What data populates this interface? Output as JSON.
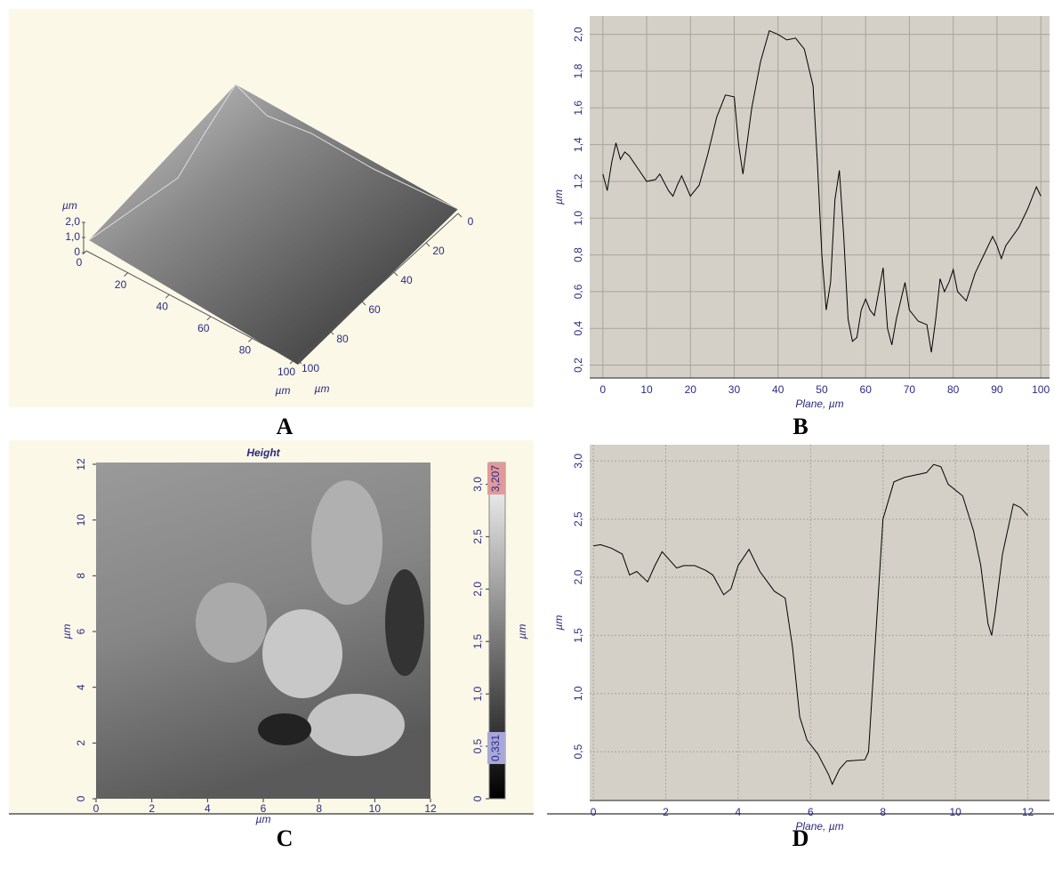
{
  "chart_data": [
    {
      "type": "surface3d",
      "panel_label": "A",
      "xlabel": "µm",
      "ylabel": "µm",
      "zlabel": "µm",
      "xlim": [
        0,
        100
      ],
      "ylim": [
        0,
        100
      ],
      "zlim": [
        0,
        2
      ],
      "xticks": [
        0,
        20,
        40,
        60,
        80,
        100
      ],
      "yticks": [
        0,
        20,
        40,
        60,
        80,
        100
      ],
      "zticks": [
        0,
        {
          "value": 1,
          "label": "1,0"
        },
        {
          "value": 2,
          "label": "2,0"
        }
      ]
    },
    {
      "type": "line",
      "panel_label": "B",
      "xlabel": "Plane, µm",
      "ylabel": "µm",
      "grid": "solid",
      "color": "#000000",
      "xlim": [
        -3,
        102
      ],
      "ylim": [
        0.13,
        2.1
      ],
      "xticks": [
        0,
        10,
        20,
        30,
        40,
        50,
        60,
        70,
        80,
        90,
        100
      ],
      "yticks": [
        {
          "value": 0.2,
          "label": "0,2"
        },
        {
          "value": 0.4,
          "label": "0,4"
        },
        {
          "value": 0.6,
          "label": "0,6"
        },
        {
          "value": 0.8,
          "label": "0,8"
        },
        {
          "value": 1,
          "label": "1,0"
        },
        {
          "value": 1.2,
          "label": "1,2"
        },
        {
          "value": 1.4,
          "label": "1,4"
        },
        {
          "value": 1.6,
          "label": "1,6"
        },
        {
          "value": 1.8,
          "label": "1,8"
        },
        {
          "value": 2,
          "label": "2,0"
        }
      ],
      "x": [
        0,
        1,
        2,
        3,
        4,
        5,
        6,
        8,
        10,
        12,
        13,
        15,
        16,
        17,
        18,
        20,
        22,
        24,
        26,
        28,
        30,
        31,
        32,
        34,
        36,
        38,
        40,
        42,
        44,
        46,
        48,
        49,
        50,
        51,
        52,
        53,
        54,
        55,
        56,
        57,
        58,
        59,
        60,
        61,
        62,
        63,
        64,
        65,
        66,
        67,
        68,
        69,
        70,
        72,
        74,
        75,
        76,
        77,
        78,
        79,
        80,
        81,
        83,
        85,
        87,
        89,
        90,
        91,
        92,
        95,
        97,
        99,
        100
      ],
      "values": [
        1.24,
        1.15,
        1.3,
        1.41,
        1.32,
        1.36,
        1.34,
        1.27,
        1.2,
        1.21,
        1.24,
        1.15,
        1.12,
        1.18,
        1.23,
        1.12,
        1.18,
        1.35,
        1.55,
        1.67,
        1.66,
        1.4,
        1.24,
        1.6,
        1.85,
        2.02,
        2.0,
        1.97,
        1.98,
        1.92,
        1.72,
        1.3,
        0.8,
        0.5,
        0.65,
        1.1,
        1.26,
        0.9,
        0.45,
        0.33,
        0.35,
        0.5,
        0.56,
        0.5,
        0.47,
        0.6,
        0.73,
        0.4,
        0.31,
        0.45,
        0.55,
        0.65,
        0.5,
        0.44,
        0.42,
        0.27,
        0.45,
        0.67,
        0.6,
        0.65,
        0.72,
        0.6,
        0.55,
        0.7,
        0.8,
        0.9,
        0.85,
        0.78,
        0.85,
        0.95,
        1.05,
        1.17,
        1.12
      ]
    },
    {
      "type": "heatmap",
      "panel_label": "C",
      "title": "Height",
      "xlabel": "µm",
      "ylabel": "µm",
      "colorbar_label": "µm",
      "xlim": [
        0,
        12
      ],
      "ylim": [
        0,
        12
      ],
      "xticks": [
        0,
        2,
        4,
        6,
        8,
        10,
        12
      ],
      "yticks": [
        0,
        2,
        4,
        6,
        8,
        10,
        12
      ],
      "colorbar_range": [
        {
          "value": 0.331,
          "label": "0,331"
        },
        {
          "value": 3.207,
          "label": "3,207"
        }
      ],
      "colorbar_ticks": [
        0,
        {
          "value": 0.5,
          "label": "0,5"
        },
        {
          "value": 1,
          "label": "1,0"
        },
        {
          "value": 1.5,
          "label": "1,5"
        },
        {
          "value": 2,
          "label": "2,0"
        },
        {
          "value": 2.5,
          "label": "2,5"
        },
        {
          "value": 3,
          "label": "3,0"
        }
      ]
    },
    {
      "type": "line",
      "panel_label": "D",
      "xlabel": "Plane, µm",
      "ylabel": "µm",
      "grid": "dashed",
      "color": "#000000",
      "xlim": [
        -0.1,
        12.6
      ],
      "ylim": [
        0.08,
        3.14
      ],
      "xticks": [
        0,
        2,
        4,
        6,
        8,
        10,
        12
      ],
      "yticks": [
        {
          "value": 0.5,
          "label": "0,5"
        },
        {
          "value": 1,
          "label": "1,0"
        },
        {
          "value": 1.5,
          "label": "1,5"
        },
        {
          "value": 2,
          "label": "2,0"
        },
        {
          "value": 2.5,
          "label": "2,5"
        },
        {
          "value": 3,
          "label": "3,0"
        }
      ],
      "x": [
        0,
        0.2,
        0.5,
        0.8,
        1,
        1.2,
        1.5,
        1.7,
        1.9,
        2.1,
        2.3,
        2.5,
        2.8,
        3.1,
        3.3,
        3.6,
        3.8,
        4,
        4.3,
        4.6,
        5,
        5.3,
        5.5,
        5.7,
        5.9,
        6.2,
        6.5,
        6.6,
        6.8,
        7,
        7.5,
        7.6,
        7.8,
        8,
        8.3,
        8.6,
        8.9,
        9.2,
        9.4,
        9.6,
        9.8,
        10.2,
        10.5,
        10.7,
        10.9,
        11,
        11.1,
        11.3,
        11.6,
        11.8,
        12
      ],
      "values": [
        2.27,
        2.28,
        2.25,
        2.2,
        2.02,
        2.05,
        1.96,
        2.1,
        2.22,
        2.15,
        2.08,
        2.1,
        2.1,
        2.06,
        2.02,
        1.85,
        1.9,
        2.1,
        2.24,
        2.05,
        1.88,
        1.82,
        1.4,
        0.8,
        0.6,
        0.48,
        0.3,
        0.22,
        0.35,
        0.42,
        0.43,
        0.5,
        1.5,
        2.5,
        2.82,
        2.86,
        2.88,
        2.9,
        2.97,
        2.95,
        2.8,
        2.7,
        2.4,
        2.1,
        1.6,
        1.5,
        1.7,
        2.2,
        2.63,
        2.6,
        2.53
      ]
    }
  ]
}
